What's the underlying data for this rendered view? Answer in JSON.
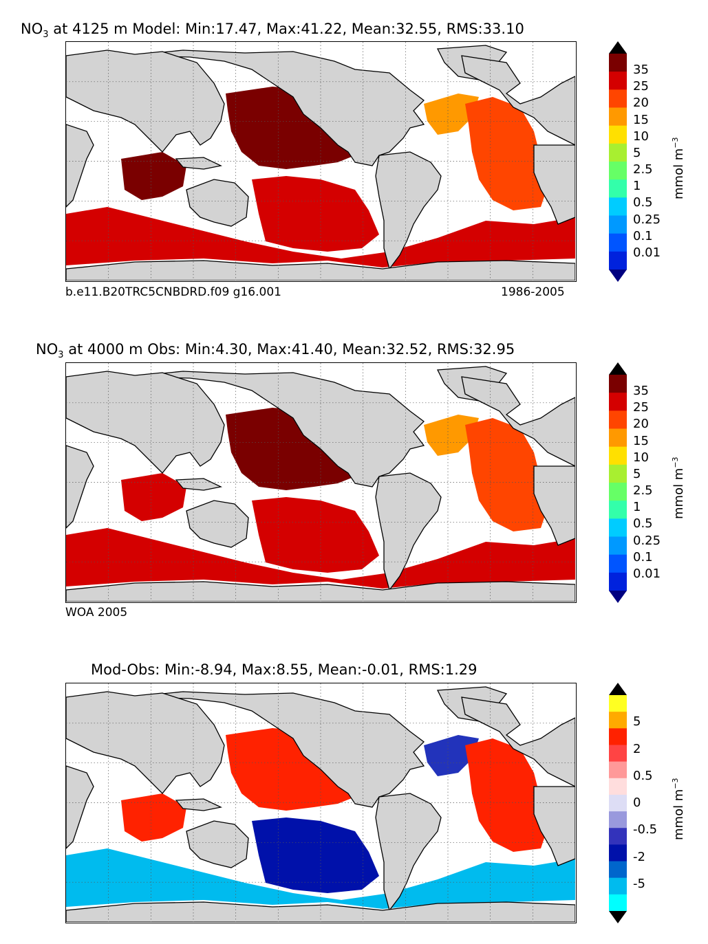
{
  "panels": [
    {
      "title_sub": "3",
      "title_prefix": "NO",
      "title_rest": " at 4125 m Model: Min:17.47, Max:41.22, Mean:32.55, RMS:33.10",
      "caption_left": "b.e11.B20TRC5CNBDRD.f09 g16.001",
      "caption_right": "1986-2005",
      "colorbar": {
        "ticks": [
          "35",
          "25",
          "20",
          "15",
          "10",
          "5",
          "2.5",
          "1",
          "0.5",
          "0.25",
          "0.1",
          "0.01"
        ],
        "colors": [
          "#000000",
          "#7a0000",
          "#d40000",
          "#ff4500",
          "#ff9900",
          "#ffe000",
          "#a8ef30",
          "#66ff66",
          "#33ffaa",
          "#00ccff",
          "#0099ff",
          "#0055ff",
          "#0022dd",
          "#000080"
        ],
        "unit": "mmol m",
        "unit_exp": "−3"
      },
      "regions": [
        {
          "name": "north-pacific",
          "color": "#7a0000"
        },
        {
          "name": "indian-ocean",
          "color": "#7a0000"
        },
        {
          "name": "south-pacific",
          "color": "#d40000"
        },
        {
          "name": "north-atlantic-west",
          "color": "#ff9900"
        },
        {
          "name": "atlantic",
          "color": "#ff4500"
        },
        {
          "name": "southern-ocean",
          "color": "#d40000"
        }
      ]
    },
    {
      "title_sub": "3",
      "title_prefix": "NO",
      "title_rest": " at 4000 m Obs: Min:4.30, Max:41.40, Mean:32.52, RMS:32.95",
      "caption_left": "WOA 2005",
      "caption_right": "",
      "colorbar": {
        "ticks": [
          "35",
          "25",
          "20",
          "15",
          "10",
          "5",
          "2.5",
          "1",
          "0.5",
          "0.25",
          "0.1",
          "0.01"
        ],
        "colors": [
          "#000000",
          "#7a0000",
          "#d40000",
          "#ff4500",
          "#ff9900",
          "#ffe000",
          "#a8ef30",
          "#66ff66",
          "#33ffaa",
          "#00ccff",
          "#0099ff",
          "#0055ff",
          "#0022dd",
          "#000080"
        ],
        "unit": "mmol m",
        "unit_exp": "−3"
      },
      "regions": [
        {
          "name": "north-pacific",
          "color": "#7a0000"
        },
        {
          "name": "indian-ocean",
          "color": "#d40000"
        },
        {
          "name": "south-pacific",
          "color": "#d40000"
        },
        {
          "name": "north-atlantic-west",
          "color": "#ff9900"
        },
        {
          "name": "atlantic",
          "color": "#ff4500"
        },
        {
          "name": "southern-ocean",
          "color": "#d40000"
        }
      ]
    },
    {
      "title_sub": "",
      "title_prefix": "",
      "title_rest": "Mod-Obs: Min:-8.94, Max:8.55, Mean:-0.01, RMS:1.29",
      "caption_left": "",
      "caption_right": "",
      "colorbar": {
        "ticks": [
          "5",
          "2",
          "0.5",
          "0",
          "-0.5",
          "-2",
          "-5"
        ],
        "colors": [
          "#000000",
          "#ffff22",
          "#ffaa00",
          "#ff2200",
          "#ff4444",
          "#ff9999",
          "#ffdddd",
          "#ddddf5",
          "#9999dd",
          "#3333bb",
          "#0011aa",
          "#0066cc",
          "#00bbee",
          "#00ffff",
          "#000000"
        ],
        "unit": "mmol m",
        "unit_exp": "−3"
      },
      "regions": [
        {
          "name": "north-pacific",
          "color": "#ff2200"
        },
        {
          "name": "indian-ocean",
          "color": "#ff2200"
        },
        {
          "name": "south-pacific",
          "color": "#0011aa"
        },
        {
          "name": "north-atlantic-west",
          "color": "#2233bb"
        },
        {
          "name": "atlantic",
          "color": "#ff2200"
        },
        {
          "name": "southern-ocean",
          "color": "#00bbee"
        }
      ]
    }
  ]
}
